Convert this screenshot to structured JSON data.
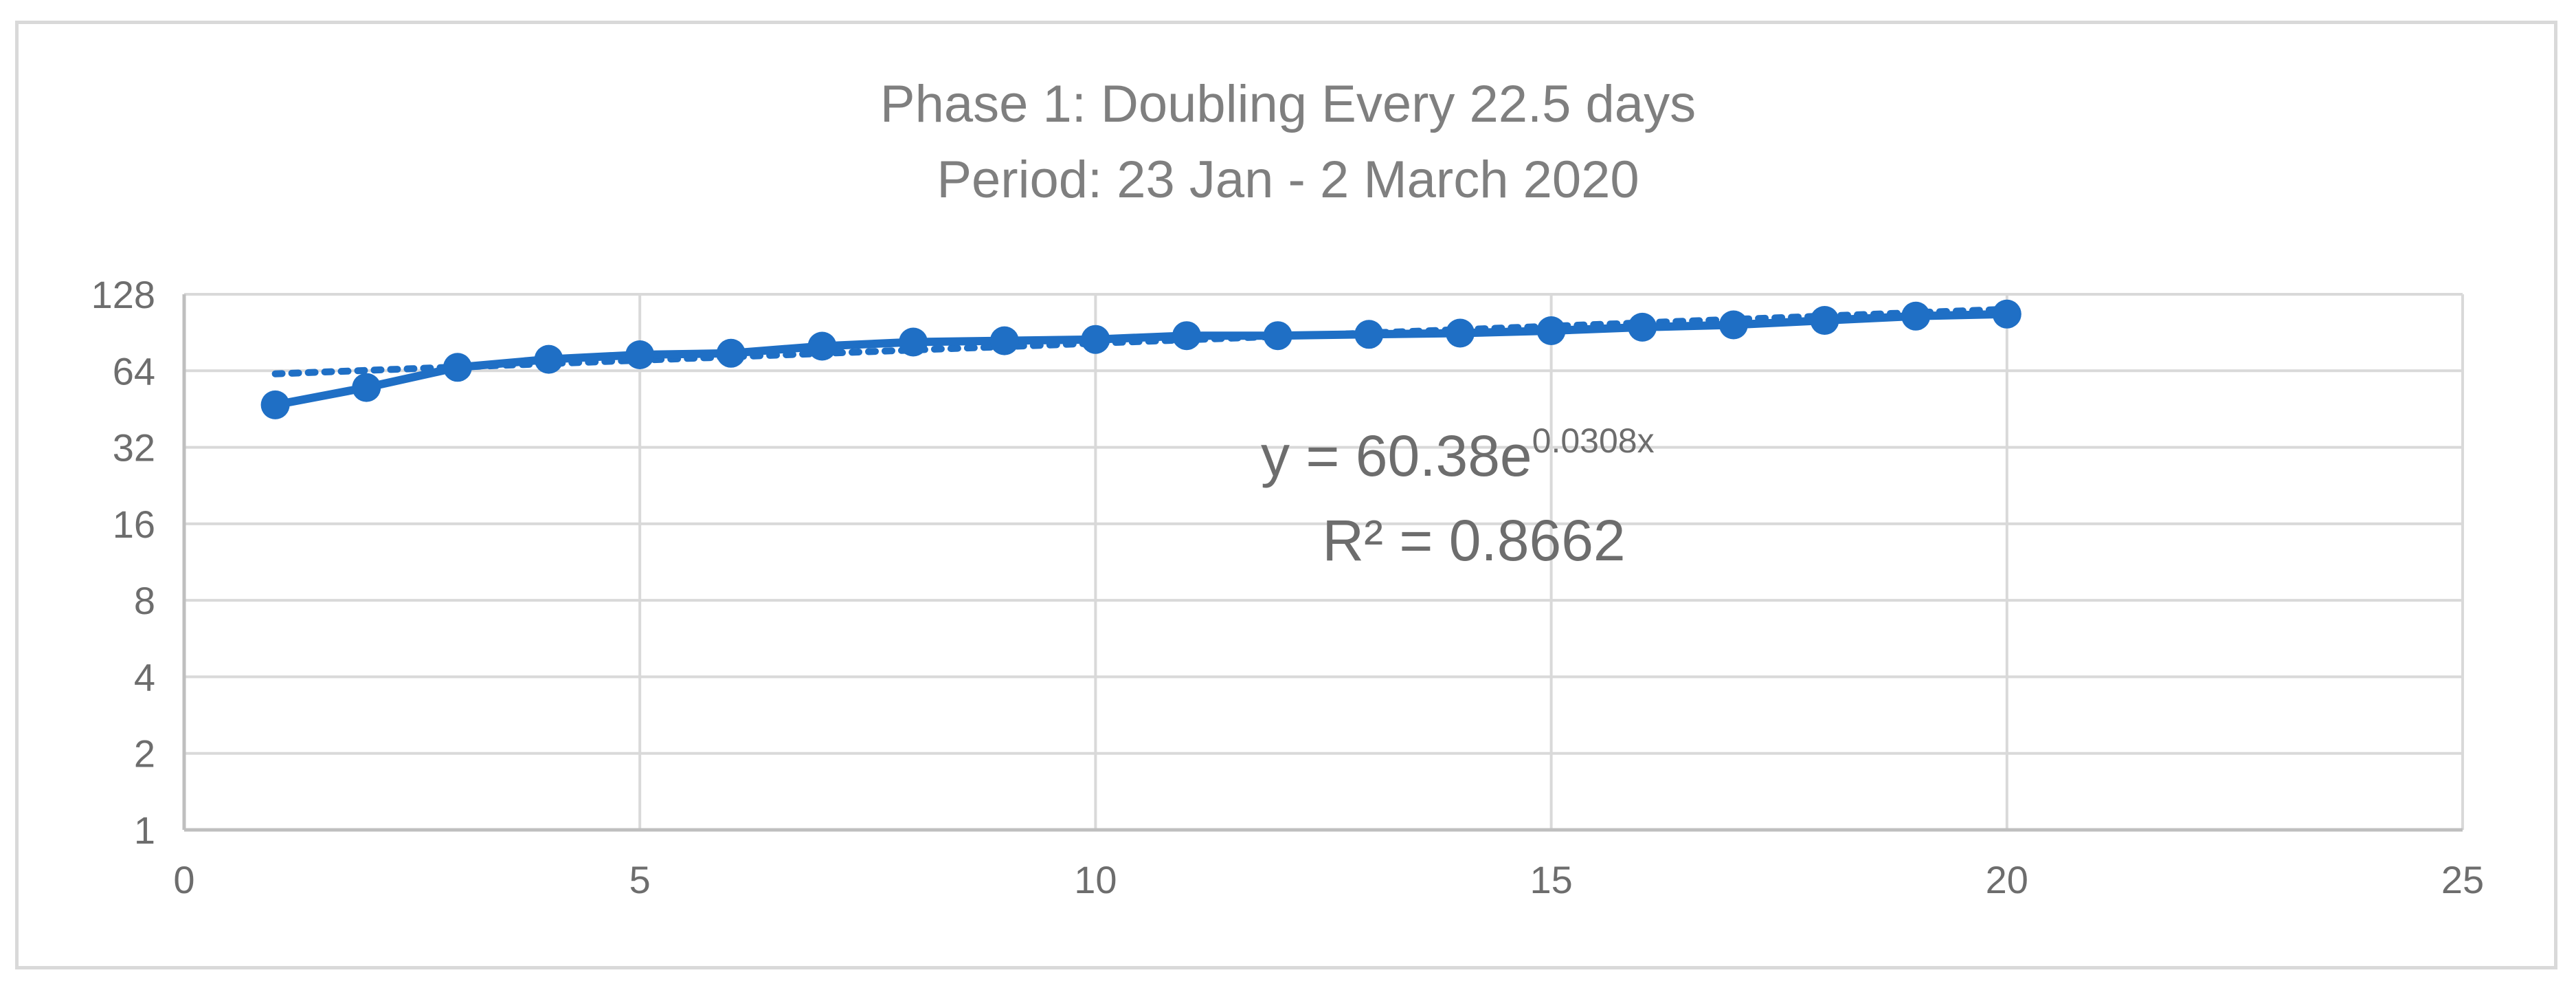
{
  "chart_data": {
    "type": "scatter",
    "title": "Phase 1: Doubling Every 22.5 days",
    "subtitle": "Period: 23 Jan - 2 March 2020",
    "xlabel": "",
    "ylabel": "",
    "xlim": [
      0,
      25
    ],
    "ylim": [
      1,
      128
    ],
    "y_scale": "log2",
    "grid": true,
    "x_ticks": [
      "0",
      "5",
      "10",
      "15",
      "20",
      "25"
    ],
    "y_ticks": [
      "1",
      "2",
      "4",
      "8",
      "16",
      "32",
      "64",
      "128"
    ],
    "series": [
      {
        "color": "#1f6fc5",
        "marker": "circle",
        "line": "solid",
        "x": [
          1,
          2,
          3,
          4,
          5,
          6,
          7,
          8,
          9,
          10,
          11,
          12,
          13,
          14,
          15,
          16,
          17,
          18,
          19,
          20
        ],
        "y": [
          47,
          55,
          66,
          71,
          74,
          75,
          80,
          83,
          84,
          85,
          88,
          88,
          89,
          90,
          92,
          95,
          97,
          101,
          105,
          107
        ]
      }
    ],
    "trendline": {
      "type": "exponential",
      "style": "dotted",
      "color": "#1f6fc5",
      "a": 60.38,
      "b": 0.0308,
      "x_range": [
        1,
        20
      ],
      "equation_prefix": "y = 60.38e",
      "equation_exponent": "0.0308x",
      "r_squared_label": "R² = 0.8662"
    }
  }
}
